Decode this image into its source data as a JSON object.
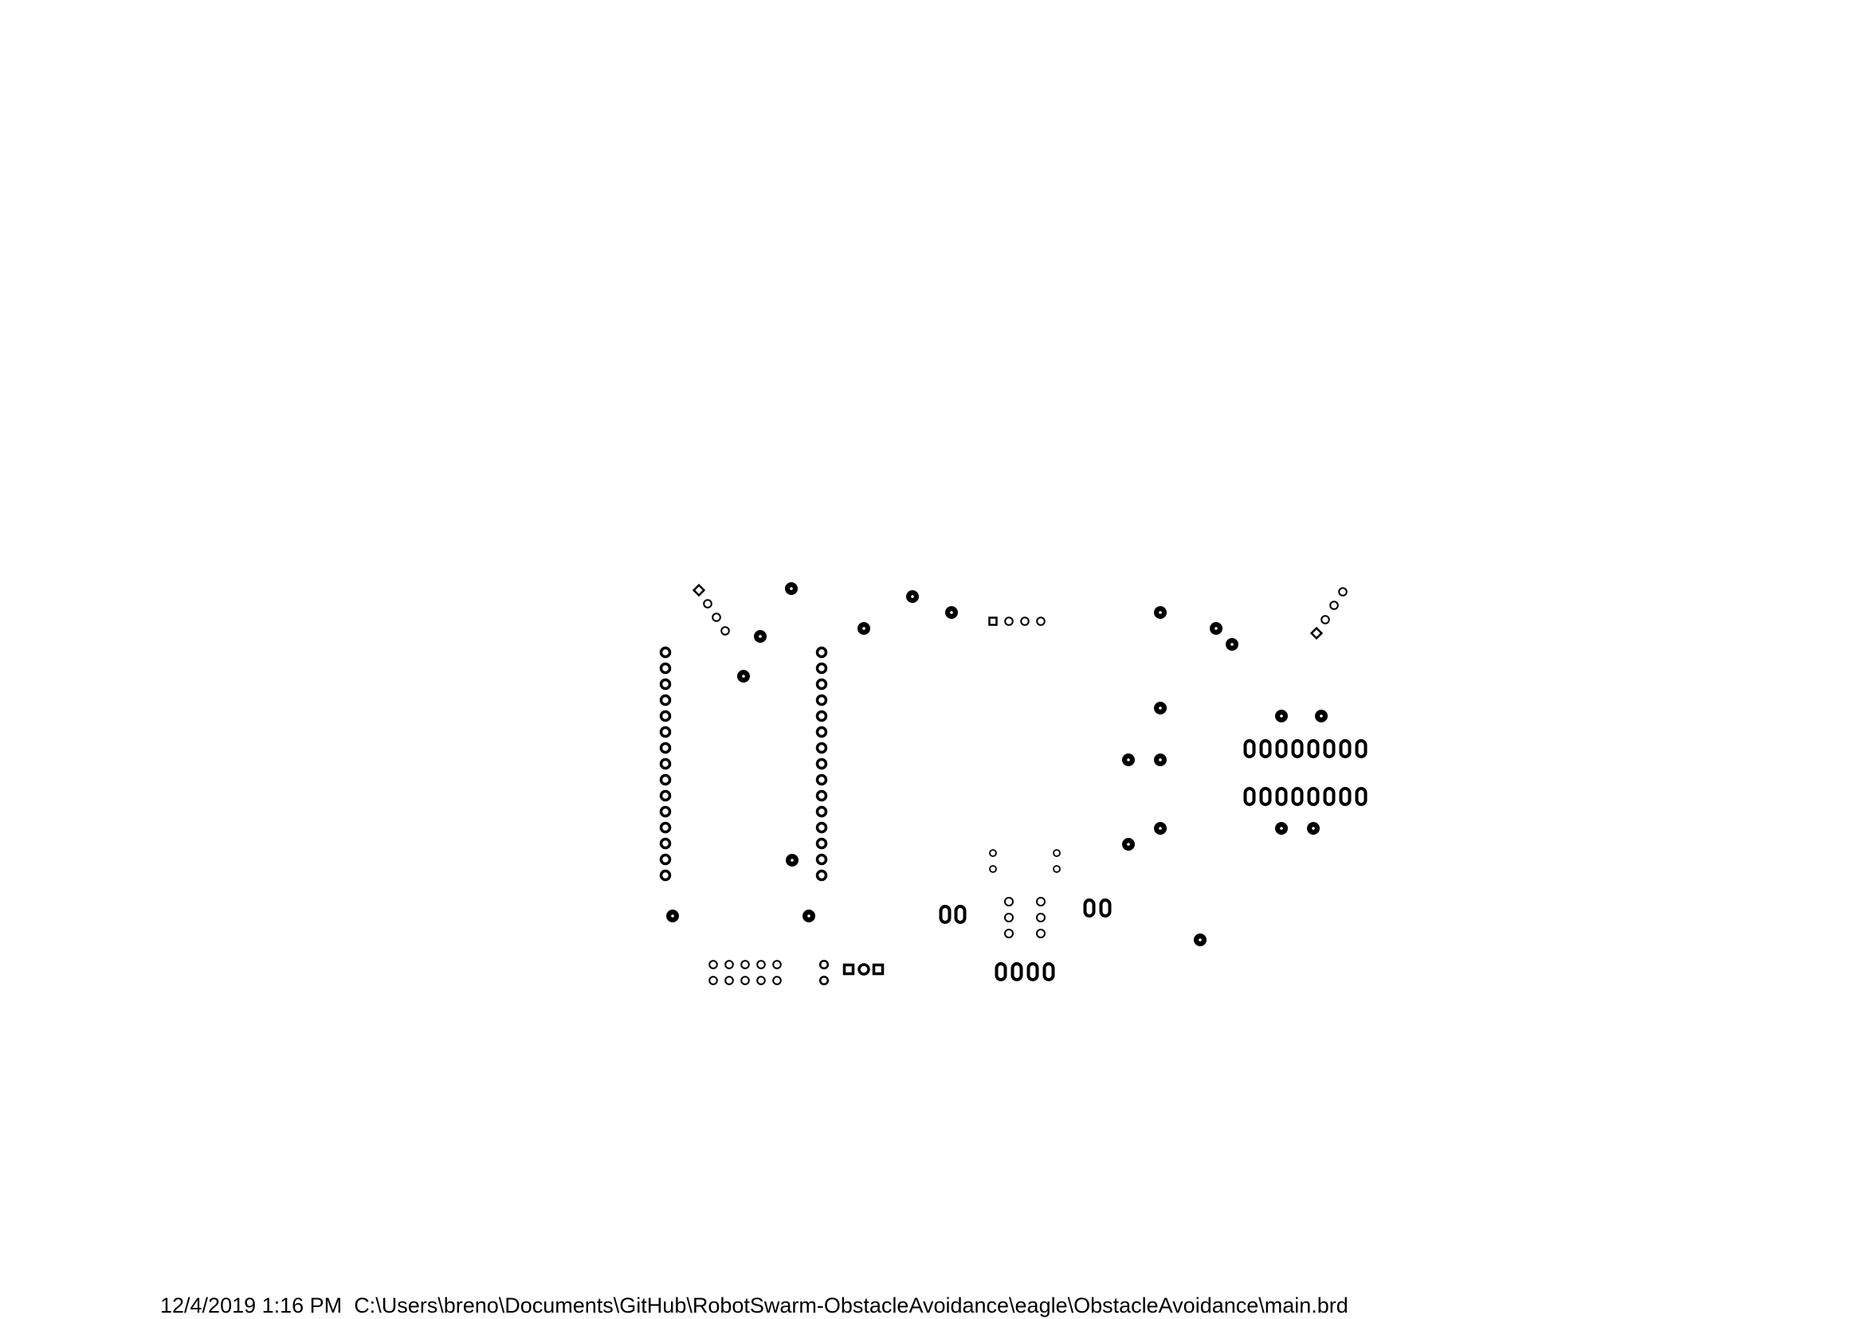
{
  "footer": {
    "timestamp": "12/4/2019 1:16 PM",
    "file_path": "C:\\Users\\breno\\Documents\\GitHub\\RobotSwarm-ObstacleAvoidance\\eagle\\ObstacleAvoidance\\main.brd"
  },
  "colors": {
    "background": "#ffffff",
    "ink": "#000000"
  },
  "drawing": {
    "type": "pcb-drill-plot",
    "pad_groups": [
      "left-angled-4-pin-header",
      "left-14-pin-column",
      "right-14-pin-column",
      "top-4-pin-header",
      "right-angled-4-pin-header",
      "bottom-2x5-header",
      "bottom-3-pin-connector",
      "8-pin-dip-rows",
      "small-2x3-header",
      "oval-pad-pairs",
      "oval-4-pad-row",
      "mounting-vias"
    ]
  }
}
